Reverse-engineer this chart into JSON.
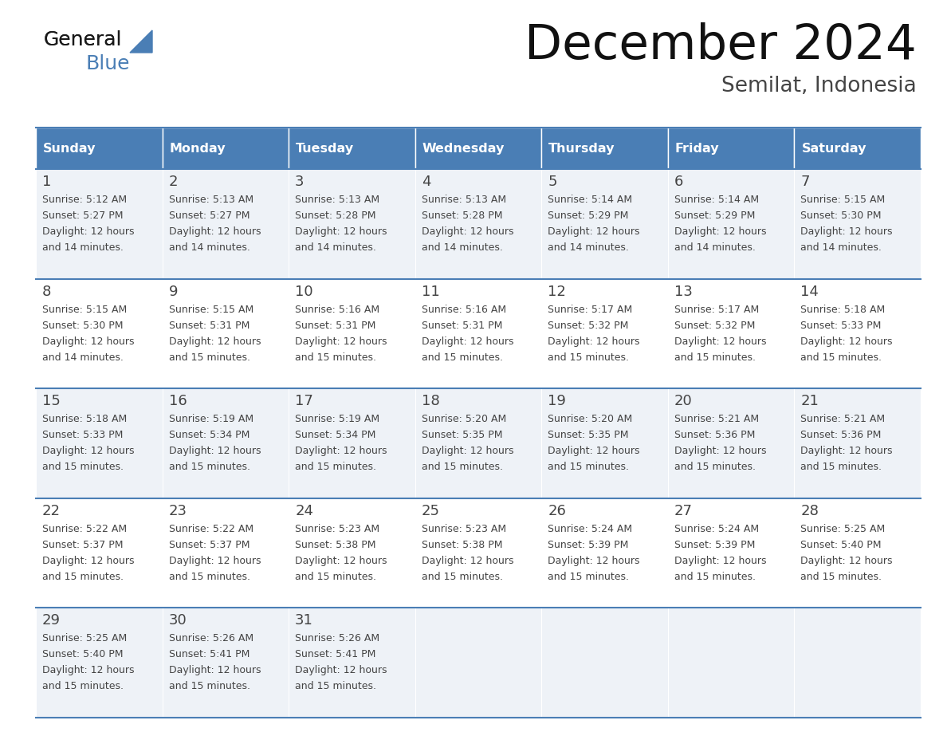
{
  "title": "December 2024",
  "subtitle": "Semilat, Indonesia",
  "days_of_week": [
    "Sunday",
    "Monday",
    "Tuesday",
    "Wednesday",
    "Thursday",
    "Friday",
    "Saturday"
  ],
  "header_bg": "#4a7eb5",
  "header_text_color": "#ffffff",
  "cell_bg_odd": "#eef2f7",
  "cell_bg_even": "#ffffff",
  "border_color": "#4a7eb5",
  "text_color": "#444444",
  "calendar_data": [
    [
      {
        "day": 1,
        "sunrise": "5:12 AM",
        "sunset": "5:27 PM",
        "daylight_line1": "12 hours",
        "daylight_line2": "and 14 minutes."
      },
      {
        "day": 2,
        "sunrise": "5:13 AM",
        "sunset": "5:27 PM",
        "daylight_line1": "12 hours",
        "daylight_line2": "and 14 minutes."
      },
      {
        "day": 3,
        "sunrise": "5:13 AM",
        "sunset": "5:28 PM",
        "daylight_line1": "12 hours",
        "daylight_line2": "and 14 minutes."
      },
      {
        "day": 4,
        "sunrise": "5:13 AM",
        "sunset": "5:28 PM",
        "daylight_line1": "12 hours",
        "daylight_line2": "and 14 minutes."
      },
      {
        "day": 5,
        "sunrise": "5:14 AM",
        "sunset": "5:29 PM",
        "daylight_line1": "12 hours",
        "daylight_line2": "and 14 minutes."
      },
      {
        "day": 6,
        "sunrise": "5:14 AM",
        "sunset": "5:29 PM",
        "daylight_line1": "12 hours",
        "daylight_line2": "and 14 minutes."
      },
      {
        "day": 7,
        "sunrise": "5:15 AM",
        "sunset": "5:30 PM",
        "daylight_line1": "12 hours",
        "daylight_line2": "and 14 minutes."
      }
    ],
    [
      {
        "day": 8,
        "sunrise": "5:15 AM",
        "sunset": "5:30 PM",
        "daylight_line1": "12 hours",
        "daylight_line2": "and 14 minutes."
      },
      {
        "day": 9,
        "sunrise": "5:15 AM",
        "sunset": "5:31 PM",
        "daylight_line1": "12 hours",
        "daylight_line2": "and 15 minutes."
      },
      {
        "day": 10,
        "sunrise": "5:16 AM",
        "sunset": "5:31 PM",
        "daylight_line1": "12 hours",
        "daylight_line2": "and 15 minutes."
      },
      {
        "day": 11,
        "sunrise": "5:16 AM",
        "sunset": "5:31 PM",
        "daylight_line1": "12 hours",
        "daylight_line2": "and 15 minutes."
      },
      {
        "day": 12,
        "sunrise": "5:17 AM",
        "sunset": "5:32 PM",
        "daylight_line1": "12 hours",
        "daylight_line2": "and 15 minutes."
      },
      {
        "day": 13,
        "sunrise": "5:17 AM",
        "sunset": "5:32 PM",
        "daylight_line1": "12 hours",
        "daylight_line2": "and 15 minutes."
      },
      {
        "day": 14,
        "sunrise": "5:18 AM",
        "sunset": "5:33 PM",
        "daylight_line1": "12 hours",
        "daylight_line2": "and 15 minutes."
      }
    ],
    [
      {
        "day": 15,
        "sunrise": "5:18 AM",
        "sunset": "5:33 PM",
        "daylight_line1": "12 hours",
        "daylight_line2": "and 15 minutes."
      },
      {
        "day": 16,
        "sunrise": "5:19 AM",
        "sunset": "5:34 PM",
        "daylight_line1": "12 hours",
        "daylight_line2": "and 15 minutes."
      },
      {
        "day": 17,
        "sunrise": "5:19 AM",
        "sunset": "5:34 PM",
        "daylight_line1": "12 hours",
        "daylight_line2": "and 15 minutes."
      },
      {
        "day": 18,
        "sunrise": "5:20 AM",
        "sunset": "5:35 PM",
        "daylight_line1": "12 hours",
        "daylight_line2": "and 15 minutes."
      },
      {
        "day": 19,
        "sunrise": "5:20 AM",
        "sunset": "5:35 PM",
        "daylight_line1": "12 hours",
        "daylight_line2": "and 15 minutes."
      },
      {
        "day": 20,
        "sunrise": "5:21 AM",
        "sunset": "5:36 PM",
        "daylight_line1": "12 hours",
        "daylight_line2": "and 15 minutes."
      },
      {
        "day": 21,
        "sunrise": "5:21 AM",
        "sunset": "5:36 PM",
        "daylight_line1": "12 hours",
        "daylight_line2": "and 15 minutes."
      }
    ],
    [
      {
        "day": 22,
        "sunrise": "5:22 AM",
        "sunset": "5:37 PM",
        "daylight_line1": "12 hours",
        "daylight_line2": "and 15 minutes."
      },
      {
        "day": 23,
        "sunrise": "5:22 AM",
        "sunset": "5:37 PM",
        "daylight_line1": "12 hours",
        "daylight_line2": "and 15 minutes."
      },
      {
        "day": 24,
        "sunrise": "5:23 AM",
        "sunset": "5:38 PM",
        "daylight_line1": "12 hours",
        "daylight_line2": "and 15 minutes."
      },
      {
        "day": 25,
        "sunrise": "5:23 AM",
        "sunset": "5:38 PM",
        "daylight_line1": "12 hours",
        "daylight_line2": "and 15 minutes."
      },
      {
        "day": 26,
        "sunrise": "5:24 AM",
        "sunset": "5:39 PM",
        "daylight_line1": "12 hours",
        "daylight_line2": "and 15 minutes."
      },
      {
        "day": 27,
        "sunrise": "5:24 AM",
        "sunset": "5:39 PM",
        "daylight_line1": "12 hours",
        "daylight_line2": "and 15 minutes."
      },
      {
        "day": 28,
        "sunrise": "5:25 AM",
        "sunset": "5:40 PM",
        "daylight_line1": "12 hours",
        "daylight_line2": "and 15 minutes."
      }
    ],
    [
      {
        "day": 29,
        "sunrise": "5:25 AM",
        "sunset": "5:40 PM",
        "daylight_line1": "12 hours",
        "daylight_line2": "and 15 minutes."
      },
      {
        "day": 30,
        "sunrise": "5:26 AM",
        "sunset": "5:41 PM",
        "daylight_line1": "12 hours",
        "daylight_line2": "and 15 minutes."
      },
      {
        "day": 31,
        "sunrise": "5:26 AM",
        "sunset": "5:41 PM",
        "daylight_line1": "12 hours",
        "daylight_line2": "and 15 minutes."
      },
      null,
      null,
      null,
      null
    ]
  ],
  "logo_color_general": "#1a1a1a",
  "logo_color_blue": "#4a7eb5",
  "logo_triangle_color": "#4a7eb5"
}
